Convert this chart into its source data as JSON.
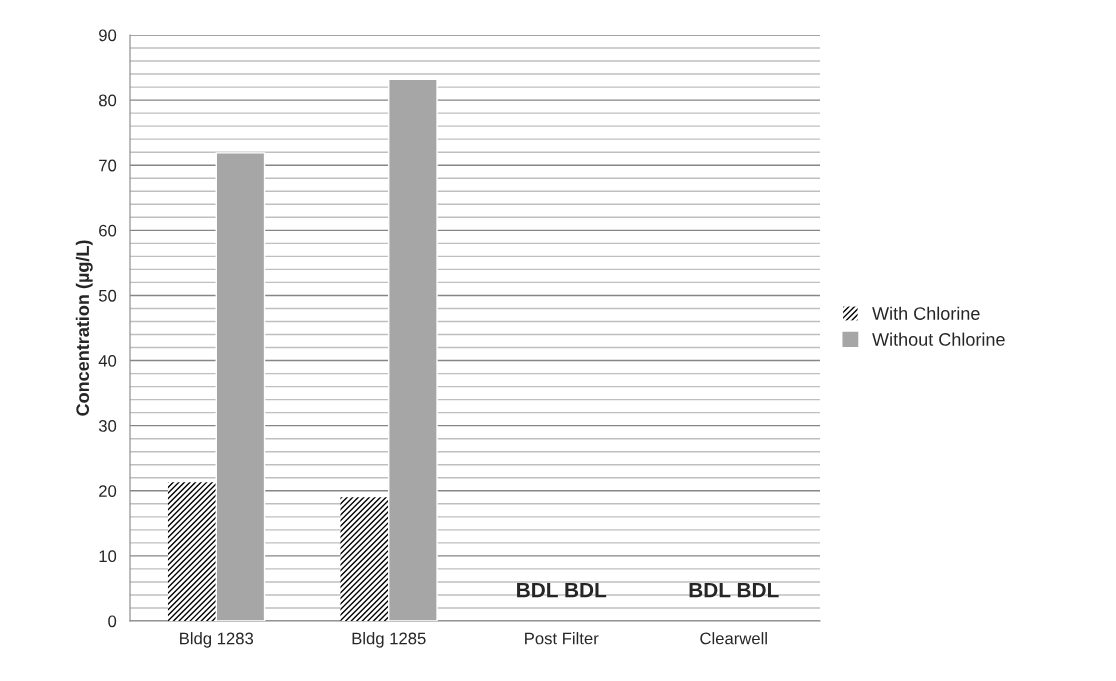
{
  "chart_data": {
    "type": "bar",
    "ylabel": "Concentration (µg/L)",
    "categories": [
      "Bldg 1283",
      "Bldg 1285",
      "Post Filter",
      "Clearwell"
    ],
    "series": [
      {
        "name": "With Chlorine",
        "color": "#000000",
        "values": [
          21.3,
          19.0,
          null,
          null
        ],
        "value_labels": [
          null,
          null,
          "BDL",
          "BDL"
        ]
      },
      {
        "name": "Without Chlorine",
        "color": "#a6a6a6",
        "values": [
          71.9,
          83.2,
          null,
          null
        ],
        "value_labels": [
          null,
          null,
          "BDL",
          "BDL"
        ]
      }
    ],
    "ylim": [
      0,
      90
    ],
    "yticks": [
      0,
      10,
      20,
      30,
      40,
      50,
      60,
      70,
      80,
      90
    ],
    "grid": "y",
    "legend": "right"
  }
}
